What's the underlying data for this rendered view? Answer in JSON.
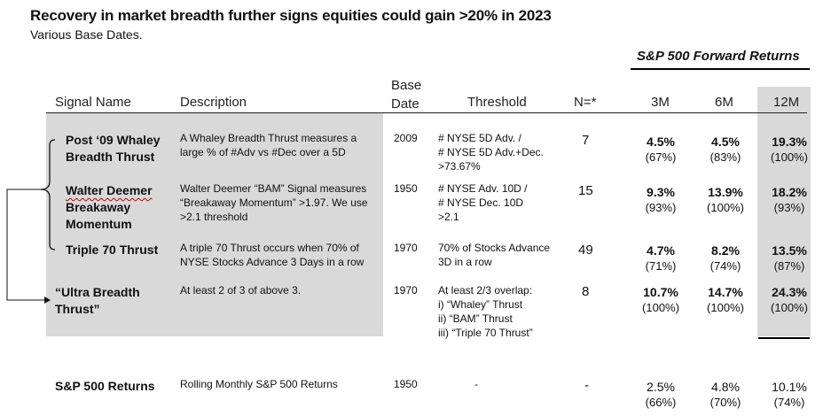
{
  "title": "Recovery in market breadth further signs equities could gain >20% in 2023",
  "subtitle": "Various Base Dates.",
  "forward_returns_header": "S&P 500 Forward Returns",
  "columns": {
    "signal_name": "Signal Name",
    "description": "Description",
    "base_date_line1": "Base",
    "base_date_line2": "Date",
    "threshold": "Threshold",
    "n": "N=*",
    "m3": "3M",
    "m6": "6M",
    "m12": "12M"
  },
  "rows": [
    {
      "name_lines": [
        "Post ‘09 Whaley",
        "Breadth Thrust"
      ],
      "description_lines": [
        "A Whaley Breadth Thrust measures a",
        "large % of #Adv vs #Dec over a 5D"
      ],
      "base_date": "2009",
      "threshold_lines": [
        "# NYSE 5D Adv. /",
        "# NYSE 5D Adv.+Dec.",
        ">73.67%"
      ],
      "n": "7",
      "m3": {
        "value": "4.5%",
        "pct": "(67%)"
      },
      "m6": {
        "value": "4.5%",
        "pct": "(83%)"
      },
      "m12": {
        "value": "19.3%",
        "pct": "(100%)"
      }
    },
    {
      "name_lines": [
        "Walter Deemer",
        "Breakaway",
        "Momentum"
      ],
      "description_lines": [
        "Walter Deemer “BAM” Signal measures",
        "“Breakaway Momentum” >1.97. We use",
        ">2.1 threshold"
      ],
      "base_date": "1950",
      "threshold_lines": [
        "# NYSE Adv. 10D /",
        "# NYSE Dec. 10D",
        ">2.1"
      ],
      "n": "15",
      "m3": {
        "value": "9.3%",
        "pct": "(93%)"
      },
      "m6": {
        "value": "13.9%",
        "pct": "(100%)"
      },
      "m12": {
        "value": "18.2%",
        "pct": "(93%)"
      }
    },
    {
      "name_lines": [
        "Triple 70 Thrust"
      ],
      "description_lines": [
        "A triple 70 Thrust occurs when 70% of",
        "NYSE Stocks Advance 3 Days in a row"
      ],
      "base_date": "1970",
      "threshold_lines": [
        "70% of Stocks Advance",
        "3D in a row"
      ],
      "n": "49",
      "m3": {
        "value": "4.7%",
        "pct": "(71%)"
      },
      "m6": {
        "value": "8.2%",
        "pct": "(74%)"
      },
      "m12": {
        "value": "13.5%",
        "pct": "(87%)"
      }
    },
    {
      "name_lines": [
        "“Ultra Breadth",
        "Thrust”"
      ],
      "description_lines": [
        "At least 2 of 3 of above 3."
      ],
      "base_date": "1970",
      "threshold_lines": [
        "At least 2/3 overlap:",
        "i) “Whaley” Thrust",
        "ii) “BAM” Thrust",
        "iii) “Triple 70 Thrust”"
      ],
      "n": "8",
      "m3": {
        "value": "10.7%",
        "pct": "(100%)"
      },
      "m6": {
        "value": "14.7%",
        "pct": "(100%)"
      },
      "m12": {
        "value": "24.3%",
        "pct": "(100%)"
      }
    },
    {
      "name_lines": [
        "S&P 500 Returns"
      ],
      "description_lines": [
        "Rolling Monthly S&P 500 Returns"
      ],
      "base_date": "1950",
      "threshold_lines": [
        "-"
      ],
      "n": "-",
      "m3": {
        "value": "2.5%",
        "pct": "(66%)"
      },
      "m6": {
        "value": "4.8%",
        "pct": "(70%)"
      },
      "m12": {
        "value": "10.1%",
        "pct": "(74%)"
      }
    }
  ],
  "colors": {
    "shade": "#d9d9d9",
    "text": "#111111",
    "spell_underline": "#c00000"
  }
}
